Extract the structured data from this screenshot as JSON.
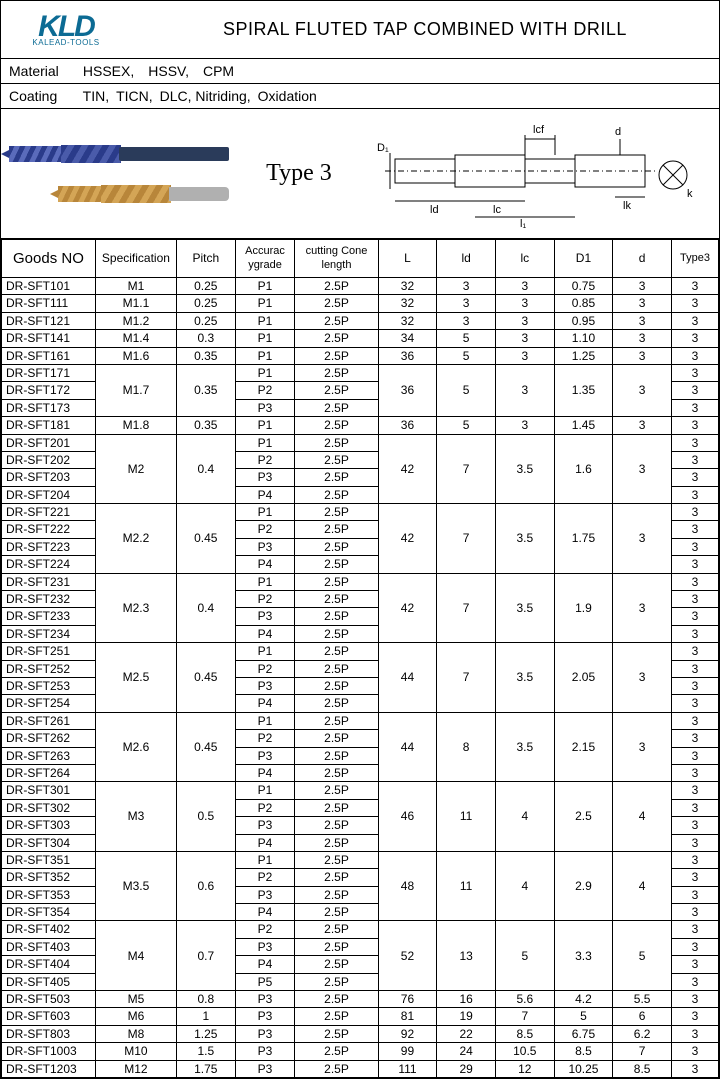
{
  "logo": {
    "main": "KLD",
    "sub": "KALEAD-TOOLS"
  },
  "title": "SPIRAL FLUTED TAP COMBINED WITH DRILL",
  "material": {
    "label": "Material",
    "value": "HSSEX, HSSV, CPM"
  },
  "coating": {
    "label": "Coating",
    "value": "TIN, TICN, DLC, Nitriding, Oxidation"
  },
  "typeLabel": "Type 3",
  "dimLabels": {
    "D1": "D₁",
    "lcf": "lcf",
    "d": "d",
    "lk": "lk",
    "k": "k",
    "ld": "ld",
    "lc": "lc",
    "l1": "l₁",
    "L": "L"
  },
  "headers": {
    "goods": "Goods NO",
    "spec": "Specification",
    "pitch": "Pitch",
    "acc": "Accurac ygrade",
    "cone": "cutting Cone length",
    "L": "L",
    "ld": "ld",
    "lc": "lc",
    "D1": "D1",
    "d": "d",
    "t3": "Type3"
  },
  "rows": [
    {
      "g": "DR-SFT101",
      "spec": "M1",
      "pitch": "0.25",
      "acc": "P1",
      "cone": "2.5P",
      "L": "32",
      "ld": "3",
      "lc": "3",
      "D1": "0.75",
      "d": "3",
      "t3": "3"
    },
    {
      "g": "DR-SFT111",
      "spec": "M1.1",
      "pitch": "0.25",
      "acc": "P1",
      "cone": "2.5P",
      "L": "32",
      "ld": "3",
      "lc": "3",
      "D1": "0.85",
      "d": "3",
      "t3": "3"
    },
    {
      "g": "DR-SFT121",
      "spec": "M1.2",
      "pitch": "0.25",
      "acc": "P1",
      "cone": "2.5P",
      "L": "32",
      "ld": "3",
      "lc": "3",
      "D1": "0.95",
      "d": "3",
      "t3": "3"
    },
    {
      "g": "DR-SFT141",
      "spec": "M1.4",
      "pitch": "0.3",
      "acc": "P1",
      "cone": "2.5P",
      "L": "34",
      "ld": "5",
      "lc": "3",
      "D1": "1.10",
      "d": "3",
      "t3": "3"
    },
    {
      "g": "DR-SFT161",
      "spec": "M1.6",
      "pitch": "0.35",
      "acc": "P1",
      "cone": "2.5P",
      "L": "36",
      "ld": "5",
      "lc": "3",
      "D1": "1.25",
      "d": "3",
      "t3": "3"
    },
    {
      "g": "DR-SFT171",
      "spec": "M1.7",
      "pitch": "0.35",
      "acc": "P1",
      "cone": "2.5P",
      "L": "36",
      "ld": "5",
      "lc": "3",
      "D1": "1.35",
      "d": "3",
      "t3": "3",
      "rs": 3
    },
    {
      "g": "DR-SFT172",
      "acc": "P2",
      "cone": "2.5P",
      "t3": "3"
    },
    {
      "g": "DR-SFT173",
      "acc": "P3",
      "cone": "2.5P",
      "t3": "3"
    },
    {
      "g": "DR-SFT181",
      "spec": "M1.8",
      "pitch": "0.35",
      "acc": "P1",
      "cone": "2.5P",
      "L": "36",
      "ld": "5",
      "lc": "3",
      "D1": "1.45",
      "d": "3",
      "t3": "3"
    },
    {
      "g": "DR-SFT201",
      "spec": "M2",
      "pitch": "0.4",
      "acc": "P1",
      "cone": "2.5P",
      "L": "42",
      "ld": "7",
      "lc": "3.5",
      "D1": "1.6",
      "d": "3",
      "t3": "3",
      "rs": 4
    },
    {
      "g": "DR-SFT202",
      "acc": "P2",
      "cone": "2.5P",
      "t3": "3"
    },
    {
      "g": "DR-SFT203",
      "acc": "P3",
      "cone": "2.5P",
      "t3": "3"
    },
    {
      "g": "DR-SFT204",
      "acc": "P4",
      "cone": "2.5P",
      "t3": "3"
    },
    {
      "g": "DR-SFT221",
      "spec": "M2.2",
      "pitch": "0.45",
      "acc": "P1",
      "cone": "2.5P",
      "L": "42",
      "ld": "7",
      "lc": "3.5",
      "D1": "1.75",
      "d": "3",
      "t3": "3",
      "rs": 4
    },
    {
      "g": "DR-SFT222",
      "acc": "P2",
      "cone": "2.5P",
      "t3": "3"
    },
    {
      "g": "DR-SFT223",
      "acc": "P3",
      "cone": "2.5P",
      "t3": "3"
    },
    {
      "g": "DR-SFT224",
      "acc": "P4",
      "cone": "2.5P",
      "t3": "3"
    },
    {
      "g": "DR-SFT231",
      "spec": "M2.3",
      "pitch": "0.4",
      "acc": "P1",
      "cone": "2.5P",
      "L": "42",
      "ld": "7",
      "lc": "3.5",
      "D1": "1.9",
      "d": "3",
      "t3": "3",
      "rs": 4
    },
    {
      "g": "DR-SFT232",
      "acc": "P2",
      "cone": "2.5P",
      "t3": "3"
    },
    {
      "g": "DR-SFT233",
      "acc": "P3",
      "cone": "2.5P",
      "t3": "3"
    },
    {
      "g": "DR-SFT234",
      "acc": "P4",
      "cone": "2.5P",
      "t3": "3"
    },
    {
      "g": "DR-SFT251",
      "spec": "M2.5",
      "pitch": "0.45",
      "acc": "P1",
      "cone": "2.5P",
      "L": "44",
      "ld": "7",
      "lc": "3.5",
      "D1": "2.05",
      "d": "3",
      "t3": "3",
      "rs": 4
    },
    {
      "g": "DR-SFT252",
      "acc": "P2",
      "cone": "2.5P",
      "t3": "3"
    },
    {
      "g": "DR-SFT253",
      "acc": "P3",
      "cone": "2.5P",
      "t3": "3"
    },
    {
      "g": "DR-SFT254",
      "acc": "P4",
      "cone": "2.5P",
      "t3": "3"
    },
    {
      "g": "DR-SFT261",
      "spec": "M2.6",
      "pitch": "0.45",
      "acc": "P1",
      "cone": "2.5P",
      "L": "44",
      "ld": "8",
      "lc": "3.5",
      "D1": "2.15",
      "d": "3",
      "t3": "3",
      "rs": 4
    },
    {
      "g": "DR-SFT262",
      "acc": "P2",
      "cone": "2.5P",
      "t3": "3"
    },
    {
      "g": "DR-SFT263",
      "acc": "P3",
      "cone": "2.5P",
      "t3": "3"
    },
    {
      "g": "DR-SFT264",
      "acc": "P4",
      "cone": "2.5P",
      "t3": "3"
    },
    {
      "g": "DR-SFT301",
      "spec": "M3",
      "pitch": "0.5",
      "acc": "P1",
      "cone": "2.5P",
      "L": "46",
      "ld": "11",
      "lc": "4",
      "D1": "2.5",
      "d": "4",
      "t3": "3",
      "rs": 4
    },
    {
      "g": "DR-SFT302",
      "acc": "P2",
      "cone": "2.5P",
      "t3": "3"
    },
    {
      "g": "DR-SFT303",
      "acc": "P3",
      "cone": "2.5P",
      "t3": "3"
    },
    {
      "g": "DR-SFT304",
      "acc": "P4",
      "cone": "2.5P",
      "t3": "3"
    },
    {
      "g": "DR-SFT351",
      "spec": "M3.5",
      "pitch": "0.6",
      "acc": "P1",
      "cone": "2.5P",
      "L": "48",
      "ld": "11",
      "lc": "4",
      "D1": "2.9",
      "d": "4",
      "t3": "3",
      "rs": 4
    },
    {
      "g": "DR-SFT352",
      "acc": "P2",
      "cone": "2.5P",
      "t3": "3"
    },
    {
      "g": "DR-SFT353",
      "acc": "P3",
      "cone": "2.5P",
      "t3": "3"
    },
    {
      "g": "DR-SFT354",
      "acc": "P4",
      "cone": "2.5P",
      "t3": "3"
    },
    {
      "g": "DR-SFT402",
      "spec": "M4",
      "pitch": "0.7",
      "acc": "P2",
      "cone": "2.5P",
      "L": "52",
      "ld": "13",
      "lc": "5",
      "D1": "3.3",
      "d": "5",
      "t3": "3",
      "rs": 4
    },
    {
      "g": "DR-SFT403",
      "acc": "P3",
      "cone": "2.5P",
      "t3": "3"
    },
    {
      "g": "DR-SFT404",
      "acc": "P4",
      "cone": "2.5P",
      "t3": "3"
    },
    {
      "g": "DR-SFT405",
      "acc": "P5",
      "cone": "2.5P",
      "t3": "3"
    },
    {
      "g": "DR-SFT503",
      "spec": "M5",
      "pitch": "0.8",
      "acc": "P3",
      "cone": "2.5P",
      "L": "76",
      "ld": "16",
      "lc": "5.6",
      "D1": "4.2",
      "d": "5.5",
      "t3": "3"
    },
    {
      "g": "DR-SFT603",
      "spec": "M6",
      "pitch": "1",
      "acc": "P3",
      "cone": "2.5P",
      "L": "81",
      "ld": "19",
      "lc": "7",
      "D1": "5",
      "d": "6",
      "t3": "3"
    },
    {
      "g": "DR-SFT803",
      "spec": "M8",
      "pitch": "1.25",
      "acc": "P3",
      "cone": "2.5P",
      "L": "92",
      "ld": "22",
      "lc": "8.5",
      "D1": "6.75",
      "d": "6.2",
      "t3": "3"
    },
    {
      "g": "DR-SFT1003",
      "spec": "M10",
      "pitch": "1.5",
      "acc": "P3",
      "cone": "2.5P",
      "L": "99",
      "ld": "24",
      "lc": "10.5",
      "D1": "8.5",
      "d": "7",
      "t3": "3"
    },
    {
      "g": "DR-SFT1203",
      "spec": "M12",
      "pitch": "1.75",
      "acc": "P3",
      "cone": "2.5P",
      "L": "111",
      "ld": "29",
      "lc": "12",
      "D1": "10.25",
      "d": "8.5",
      "t3": "3"
    }
  ]
}
